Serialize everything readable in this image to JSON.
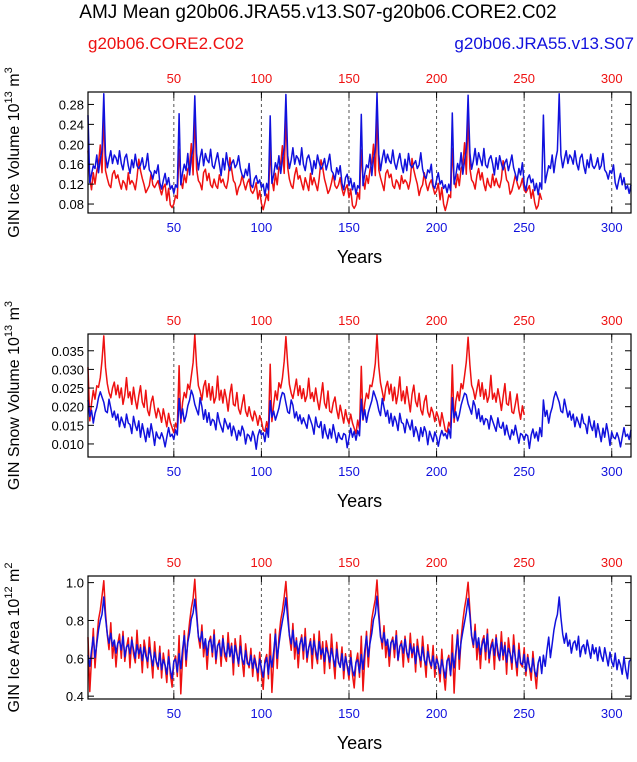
{
  "title": "AMJ Mean g20b06.JRA55.v13.S07-g20b06.CORE2.C02",
  "legend": {
    "core2": "g20b06.CORE2.C02",
    "jra": "g20b06.JRA55.v13.S07"
  },
  "colors": {
    "core2": "#ee1111",
    "jra": "#1111dd",
    "axis": "#000000"
  },
  "chart_data": [
    {
      "type": "line",
      "name": "ice-volume",
      "ylabel_main": "GIN Ice Volume 10",
      "ylabel_sup": "13",
      "ylabel_unit": "m",
      "ylabel_unit_sup": "3",
      "xlabel": "Years",
      "xlim": [
        1,
        311
      ],
      "ylim": [
        0.062,
        0.305
      ],
      "yticks": [
        "0.08",
        "0.12",
        "0.16",
        "0.20",
        "0.24",
        "0.28"
      ],
      "xticks": [
        "50",
        "100",
        "150",
        "200",
        "250",
        "300"
      ],
      "vlines": [
        50,
        100,
        150,
        200,
        250,
        300
      ],
      "series": [
        {
          "name": "g20b06.CORE2.C02",
          "color": "#ee1111",
          "cycle_len": 52,
          "x_start": 1,
          "x_end": 260,
          "cycle": [
            0.19,
            0.13,
            0.11,
            0.14,
            0.12,
            0.15,
            0.16,
            0.2,
            0.14,
            0.26,
            0.15,
            0.13,
            0.12,
            0.11,
            0.14,
            0.15,
            0.13,
            0.14,
            0.12,
            0.11,
            0.13,
            0.12,
            0.11,
            0.14,
            0.12,
            0.13,
            0.12,
            0.11,
            0.13,
            0.17,
            0.15,
            0.13,
            0.12,
            0.1,
            0.11,
            0.12,
            0.14,
            0.12,
            0.11,
            0.12,
            0.13,
            0.11,
            0.1,
            0.11,
            0.12,
            0.09,
            0.11,
            0.08,
            0.07,
            0.08,
            0.1,
            0.09
          ]
        },
        {
          "name": "g20b06.JRA55.v13.S07",
          "color": "#1111dd",
          "cycle_len": 52,
          "x_start": 1,
          "x_end": 311,
          "cycle": [
            0.26,
            0.12,
            0.14,
            0.16,
            0.15,
            0.18,
            0.14,
            0.17,
            0.19,
            0.3,
            0.18,
            0.15,
            0.17,
            0.19,
            0.16,
            0.18,
            0.17,
            0.16,
            0.19,
            0.16,
            0.15,
            0.17,
            0.18,
            0.16,
            0.14,
            0.17,
            0.15,
            0.18,
            0.16,
            0.15,
            0.16,
            0.17,
            0.15,
            0.16,
            0.18,
            0.15,
            0.14,
            0.13,
            0.15,
            0.14,
            0.16,
            0.12,
            0.11,
            0.13,
            0.14,
            0.12,
            0.13,
            0.11,
            0.12,
            0.1,
            0.12,
            0.11
          ]
        }
      ]
    },
    {
      "type": "line",
      "name": "snow-volume",
      "ylabel_main": "GIN Snow Volume 10",
      "ylabel_sup": "13",
      "ylabel_unit": "m",
      "ylabel_unit_sup": "3",
      "xlabel": "Years",
      "xlim": [
        1,
        311
      ],
      "ylim": [
        0.0065,
        0.0395
      ],
      "yticks": [
        "0.010",
        "0.015",
        "0.020",
        "0.025",
        "0.030",
        "0.035"
      ],
      "xticks": [
        "50",
        "100",
        "150",
        "200",
        "250",
        "300"
      ],
      "vlines": [
        50,
        100,
        150,
        200,
        250,
        300
      ],
      "series": [
        {
          "name": "g20b06.CORE2.C02",
          "color": "#ee1111",
          "cycle_len": 52,
          "x_start": 1,
          "x_end": 250,
          "cycle": [
            0.031,
            0.016,
            0.021,
            0.024,
            0.022,
            0.026,
            0.025,
            0.028,
            0.032,
            0.039,
            0.031,
            0.026,
            0.024,
            0.022,
            0.025,
            0.027,
            0.023,
            0.026,
            0.022,
            0.025,
            0.021,
            0.023,
            0.028,
            0.022,
            0.024,
            0.021,
            0.025,
            0.022,
            0.019,
            0.023,
            0.026,
            0.021,
            0.02,
            0.024,
            0.019,
            0.018,
            0.021,
            0.023,
            0.019,
            0.017,
            0.02,
            0.018,
            0.016,
            0.019,
            0.017,
            0.015,
            0.018,
            0.016,
            0.014,
            0.013,
            0.016,
            0.014
          ]
        },
        {
          "name": "g20b06.JRA55.v13.S07",
          "color": "#1111dd",
          "cycle_len": 52,
          "x_start": 1,
          "x_end": 311,
          "cycle": [
            0.022,
            0.017,
            0.019,
            0.016,
            0.018,
            0.02,
            0.022,
            0.024,
            0.023,
            0.021,
            0.019,
            0.018,
            0.022,
            0.02,
            0.017,
            0.019,
            0.016,
            0.018,
            0.015,
            0.017,
            0.016,
            0.014,
            0.018,
            0.016,
            0.015,
            0.013,
            0.017,
            0.015,
            0.014,
            0.016,
            0.012,
            0.015,
            0.013,
            0.011,
            0.014,
            0.012,
            0.015,
            0.013,
            0.01,
            0.013,
            0.012,
            0.011,
            0.013,
            0.012,
            0.009,
            0.012,
            0.014,
            0.012,
            0.013,
            0.011,
            0.014,
            0.012
          ]
        }
      ]
    },
    {
      "type": "line",
      "name": "ice-area",
      "ylabel_main": "GIN Ice Area 10",
      "ylabel_sup": "12",
      "ylabel_unit": "m",
      "ylabel_unit_sup": "2",
      "xlabel": "Years",
      "xlim": [
        1,
        311
      ],
      "ylim": [
        0.385,
        1.035
      ],
      "yticks": [
        "0.4",
        "0.6",
        "0.8",
        "1.0"
      ],
      "xticks": [
        "50",
        "100",
        "150",
        "200",
        "250",
        "300"
      ],
      "vlines": [
        50,
        100,
        150,
        200,
        250,
        300
      ],
      "series": [
        {
          "name": "g20b06.CORE2.C02",
          "color": "#ee1111",
          "cycle_len": 52,
          "x_start": 1,
          "x_end": 258,
          "cycle": [
            0.72,
            0.42,
            0.6,
            0.75,
            0.55,
            0.7,
            0.8,
            0.86,
            0.92,
            1.01,
            0.85,
            0.72,
            0.65,
            0.78,
            0.6,
            0.7,
            0.55,
            0.68,
            0.72,
            0.6,
            0.75,
            0.58,
            0.66,
            0.7,
            0.55,
            0.72,
            0.62,
            0.58,
            0.74,
            0.6,
            0.68,
            0.52,
            0.7,
            0.63,
            0.55,
            0.72,
            0.6,
            0.5,
            0.68,
            0.58,
            0.55,
            0.66,
            0.5,
            0.62,
            0.56,
            0.48,
            0.64,
            0.52,
            0.44,
            0.58,
            0.62,
            0.5
          ]
        },
        {
          "name": "g20b06.JRA55.v13.S07",
          "color": "#1111dd",
          "cycle_len": 52,
          "x_start": 1,
          "x_end": 311,
          "cycle": [
            0.62,
            0.55,
            0.64,
            0.72,
            0.6,
            0.68,
            0.74,
            0.8,
            0.84,
            0.92,
            0.82,
            0.72,
            0.68,
            0.74,
            0.66,
            0.7,
            0.62,
            0.68,
            0.7,
            0.64,
            0.72,
            0.6,
            0.66,
            0.68,
            0.62,
            0.7,
            0.64,
            0.6,
            0.68,
            0.62,
            0.66,
            0.58,
            0.66,
            0.62,
            0.58,
            0.66,
            0.6,
            0.56,
            0.64,
            0.58,
            0.56,
            0.62,
            0.54,
            0.6,
            0.56,
            0.52,
            0.6,
            0.54,
            0.5,
            0.58,
            0.6,
            0.52
          ]
        }
      ]
    }
  ]
}
